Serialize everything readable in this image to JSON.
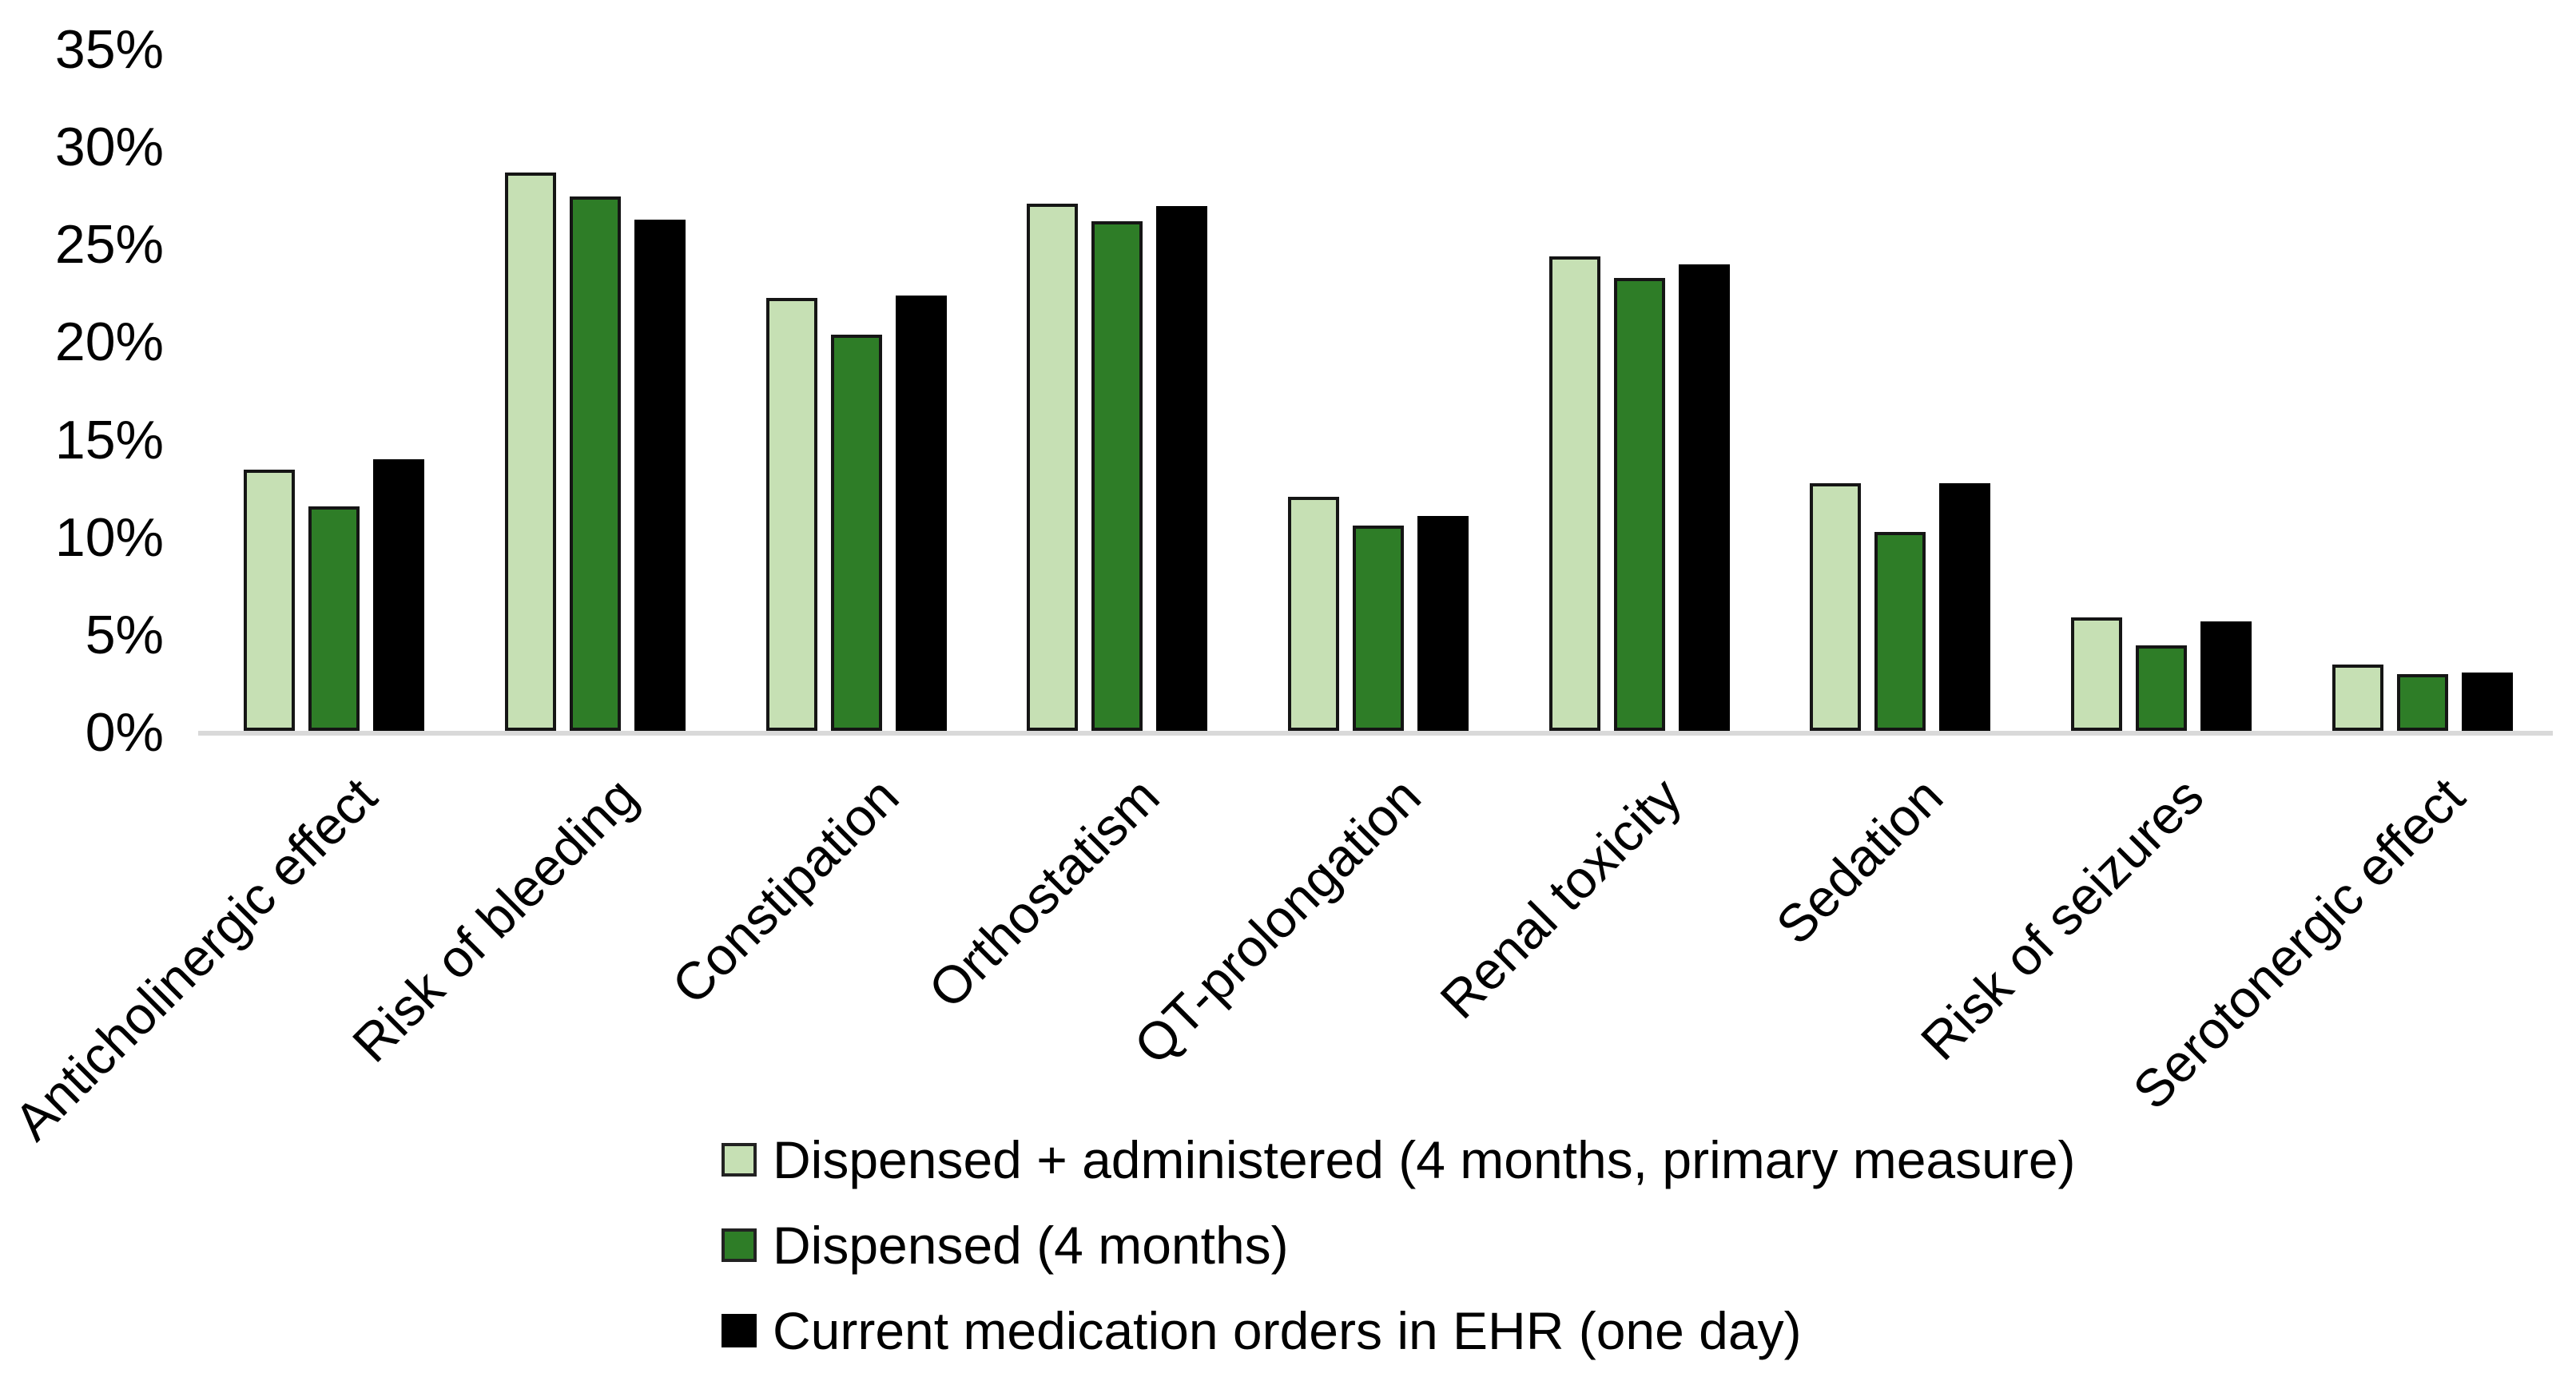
{
  "chart_data": {
    "type": "bar",
    "title": "",
    "xlabel": "",
    "ylabel": "",
    "categories": [
      "Anticholinergic effect",
      "Risk of bleeding",
      "Constipation",
      "Orthostatism",
      "QT-prolongation",
      "Renal toxicity",
      "Sedation",
      "Risk of seizures",
      "Serotonergic effect"
    ],
    "series": [
      {
        "name": "Dispensed + administered (4 months, primary measure)",
        "color": "#c6e0b4",
        "border": true,
        "values": [
          13.4,
          28.6,
          22.2,
          27.0,
          12.0,
          24.3,
          12.7,
          5.8,
          3.4
        ]
      },
      {
        "name": "Dispensed (4 months)",
        "color": "#2e7d27",
        "border": true,
        "values": [
          11.5,
          27.4,
          20.3,
          26.1,
          10.5,
          23.2,
          10.2,
          4.4,
          2.9
        ]
      },
      {
        "name": "Current medication orders in EHR (one day)",
        "color": "#000000",
        "border": false,
        "values": [
          13.9,
          26.2,
          22.3,
          26.9,
          11.0,
          23.9,
          12.7,
          5.6,
          3.0
        ]
      }
    ],
    "ylim": [
      0,
      35
    ],
    "ytick_step": 5,
    "yticks": [
      "0%",
      "5%",
      "10%",
      "15%",
      "20%",
      "25%",
      "30%",
      "35%"
    ],
    "grid": false,
    "legend_position": "bottom-left",
    "axis_line_color": "#d9d9d9",
    "unit": "%"
  }
}
